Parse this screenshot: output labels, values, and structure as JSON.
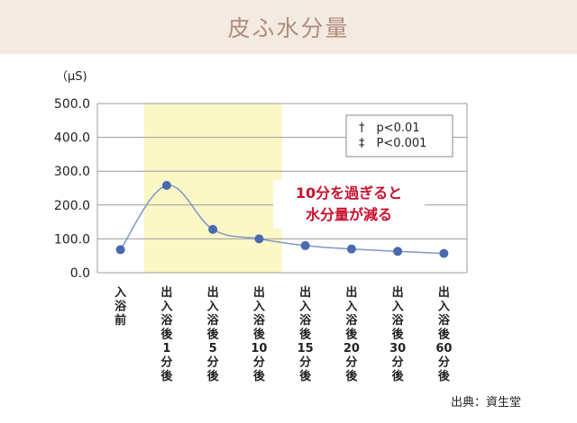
{
  "title": "皮ふ水分量",
  "source": "出典：資生堂",
  "chart_data": {
    "type": "line",
    "unit_label": "（μS)",
    "ylim": [
      0,
      500
    ],
    "y_ticks": [
      "0.0",
      "100.0",
      "200.0",
      "300.0",
      "400.0",
      "500.0"
    ],
    "grid": true,
    "categories": [
      "入浴前",
      "出入浴後1分後",
      "出入浴後5分後",
      "出入浴後10分後",
      "出入浴後15分後",
      "出入浴後20分後",
      "出入浴後30分後",
      "出入浴後60分後"
    ],
    "values": [
      68,
      258,
      128,
      100,
      80,
      70,
      63,
      57
    ],
    "highlight_range": [
      1,
      3
    ],
    "highlight_color": "#fbf8c6",
    "line_color": "#7f97c9",
    "marker_color": "#4a69b0",
    "legend": [
      "†　p<0.01",
      "‡　P<0.001"
    ],
    "legend_position": "top-right",
    "annotation": [
      "10分を過ぎると",
      "水分量が減る"
    ],
    "annotation_color": "#c8102e"
  }
}
